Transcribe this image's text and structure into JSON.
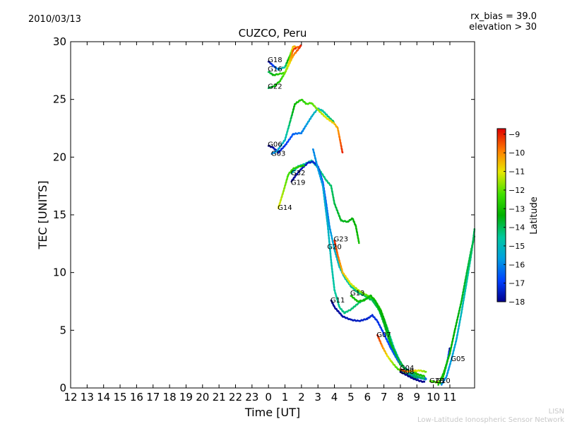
{
  "header": {
    "date": "2010/03/13",
    "rx_bias": "rx_bias = 39.0",
    "elevation": "elevation > 30"
  },
  "footer": {
    "org_short": "LISN",
    "org_long": "Low-Latitude Ionospheric Sensor Network"
  },
  "colorbar": {
    "label": "Latitude",
    "range": [
      -18,
      -8.7
    ],
    "ticks": [
      "−9",
      "−10",
      "−11",
      "−12",
      "−13",
      "−14",
      "−15",
      "−16",
      "−17",
      "−18"
    ],
    "tick_values": [
      -9,
      -10,
      -11,
      -12,
      -13,
      -14,
      -15,
      -16,
      -17,
      -18
    ]
  },
  "chart_data": {
    "type": "scatter",
    "title": "CUZCO, Peru",
    "xlabel": "Time [UT]",
    "ylabel": "TEC [UNITS]",
    "xlim": [
      12,
      36.5
    ],
    "ylim": [
      0,
      30
    ],
    "x_ticks": [
      "12",
      "13",
      "14",
      "15",
      "16",
      "17",
      "18",
      "19",
      "20",
      "21",
      "22",
      "23",
      "0",
      "1",
      "2",
      "3",
      "4",
      "5",
      "6",
      "7",
      "8",
      "9",
      "10",
      "11"
    ],
    "x_tick_values": [
      12,
      13,
      14,
      15,
      16,
      17,
      18,
      19,
      20,
      21,
      22,
      23,
      24,
      25,
      26,
      27,
      28,
      29,
      30,
      31,
      32,
      33,
      34,
      35
    ],
    "y_ticks": [
      "0",
      "5",
      "10",
      "15",
      "20",
      "25",
      "30"
    ],
    "y_tick_values": [
      0,
      5,
      10,
      15,
      20,
      25,
      30
    ],
    "series": [
      {
        "name": "G18",
        "label_at": [
          24.0,
          28.4
        ],
        "lat_start": -18,
        "lat_end": -9,
        "points": [
          [
            24.0,
            28.3
          ],
          [
            24.3,
            27.9
          ],
          [
            24.6,
            27.6
          ],
          [
            25.0,
            27.8
          ],
          [
            25.3,
            28.8
          ],
          [
            25.5,
            29.6
          ],
          [
            25.8,
            29.5
          ],
          [
            26.0,
            29.7
          ]
        ]
      },
      {
        "name": "G16",
        "label_at": [
          24.0,
          27.6
        ],
        "lat_start": -14,
        "lat_end": -9,
        "points": [
          [
            24.0,
            27.4
          ],
          [
            24.3,
            27.1
          ],
          [
            24.6,
            27.2
          ],
          [
            25.0,
            27.3
          ],
          [
            25.3,
            28.4
          ],
          [
            25.5,
            29.3
          ],
          [
            25.7,
            29.5
          ]
        ]
      },
      {
        "name": "G22",
        "label_at": [
          24.0,
          26.1
        ],
        "lat_start": -14,
        "lat_end": -9,
        "points": [
          [
            24.0,
            26.0
          ],
          [
            24.3,
            26.1
          ],
          [
            24.7,
            26.6
          ],
          [
            25.0,
            27.3
          ],
          [
            25.5,
            28.8
          ],
          [
            26.0,
            29.7
          ]
        ]
      },
      {
        "name": "G06",
        "label_at": [
          24.0,
          21.1
        ],
        "lat_start": -18,
        "lat_end": -14,
        "points": [
          [
            24.0,
            21.0
          ],
          [
            24.3,
            20.8
          ],
          [
            24.6,
            20.4
          ],
          [
            25.0,
            21.0
          ],
          [
            25.5,
            22.0
          ],
          [
            26.0,
            22.1
          ],
          [
            26.3,
            22.8
          ],
          [
            26.7,
            23.7
          ],
          [
            27.0,
            24.2
          ],
          [
            27.3,
            24.0
          ],
          [
            27.7,
            23.4
          ],
          [
            28.0,
            23.0
          ]
        ]
      },
      {
        "name": "G03",
        "label_at": [
          24.2,
          20.3
        ],
        "lat_start": -16,
        "lat_end": -9,
        "points": [
          [
            24.2,
            20.3
          ],
          [
            24.5,
            20.5
          ],
          [
            25.0,
            21.5
          ],
          [
            25.3,
            23.0
          ],
          [
            25.6,
            24.6
          ],
          [
            26.0,
            25.0
          ],
          [
            26.3,
            24.6
          ],
          [
            26.6,
            24.7
          ],
          [
            27.0,
            24.1
          ],
          [
            27.5,
            23.4
          ],
          [
            28.0,
            22.9
          ],
          [
            28.2,
            22.5
          ],
          [
            28.5,
            20.3
          ]
        ]
      },
      {
        "name": "G32",
        "label_at": [
          25.4,
          18.6
        ],
        "lat_start": -15,
        "lat_end": -13,
        "points": [
          [
            25.4,
            18.6
          ],
          [
            25.8,
            19.2
          ],
          [
            26.2,
            19.4
          ],
          [
            26.6,
            19.7
          ],
          [
            27.0,
            19.1
          ],
          [
            27.5,
            18.0
          ],
          [
            27.8,
            17.5
          ],
          [
            28.0,
            16.0
          ],
          [
            28.4,
            14.5
          ],
          [
            28.8,
            14.4
          ],
          [
            29.1,
            14.7
          ],
          [
            29.3,
            14.0
          ],
          [
            29.5,
            12.5
          ]
        ]
      },
      {
        "name": "G19",
        "label_at": [
          25.4,
          17.8
        ],
        "lat_start": -18,
        "lat_end": -12,
        "points": [
          [
            25.4,
            17.9
          ],
          [
            25.7,
            18.5
          ],
          [
            26.0,
            19.0
          ],
          [
            26.4,
            19.5
          ],
          [
            26.7,
            19.6
          ],
          [
            27.0,
            19.2
          ],
          [
            27.3,
            17.8
          ],
          [
            27.5,
            16.0
          ],
          [
            27.7,
            14.0
          ],
          [
            28.0,
            12.0
          ],
          [
            28.3,
            10.5
          ],
          [
            28.6,
            9.6
          ],
          [
            29.0,
            8.8
          ],
          [
            29.4,
            8.3
          ],
          [
            29.8,
            8.0
          ],
          [
            30.2,
            7.8
          ],
          [
            30.6,
            7.0
          ],
          [
            31.0,
            6.0
          ],
          [
            31.4,
            4.0
          ],
          [
            31.8,
            2.5
          ],
          [
            32.3,
            1.6
          ],
          [
            33.0,
            1.3
          ]
        ]
      },
      {
        "name": "G14",
        "label_at": [
          24.6,
          15.6
        ],
        "lat_start": -11,
        "lat_end": -13,
        "points": [
          [
            24.6,
            15.6
          ],
          [
            24.9,
            17.0
          ],
          [
            25.2,
            18.5
          ],
          [
            25.5,
            19.0
          ],
          [
            25.9,
            19.2
          ],
          [
            26.2,
            19.3
          ]
        ]
      },
      {
        "name": "G23",
        "label_at": [
          28.0,
          12.9
        ],
        "lat_start": -9,
        "lat_end": -17,
        "points": [
          [
            28.0,
            12.8
          ],
          [
            28.2,
            11.5
          ],
          [
            28.5,
            10.0
          ],
          [
            29.0,
            9.0
          ],
          [
            29.5,
            8.4
          ],
          [
            30.0,
            8.0
          ],
          [
            30.4,
            7.7
          ],
          [
            30.8,
            6.8
          ],
          [
            31.2,
            5.2
          ],
          [
            31.6,
            3.5
          ],
          [
            32.0,
            2.2
          ],
          [
            32.5,
            1.2
          ],
          [
            33.0,
            0.9
          ],
          [
            33.6,
            0.8
          ]
        ]
      },
      {
        "name": "G20",
        "label_at": [
          27.6,
          12.2
        ],
        "lat_start": -16,
        "lat_end": -13,
        "points": [
          [
            26.7,
            20.7
          ],
          [
            27.0,
            19.0
          ],
          [
            27.3,
            17.5
          ],
          [
            27.6,
            14.0
          ],
          [
            27.8,
            11.0
          ],
          [
            28.0,
            8.5
          ],
          [
            28.3,
            7.0
          ],
          [
            28.6,
            6.5
          ],
          [
            29.0,
            6.8
          ],
          [
            29.5,
            7.4
          ],
          [
            30.0,
            7.8
          ],
          [
            30.3,
            7.6
          ],
          [
            30.7,
            6.8
          ],
          [
            31.0,
            5.6
          ],
          [
            31.3,
            4.2
          ],
          [
            31.6,
            3.0
          ],
          [
            32.0,
            2.0
          ],
          [
            32.5,
            1.5
          ],
          [
            33.0,
            1.2
          ],
          [
            33.5,
            1.0
          ]
        ]
      },
      {
        "name": "G11",
        "label_at": [
          27.8,
          7.6
        ],
        "lat_start": -18,
        "lat_end": -16,
        "points": [
          [
            27.8,
            7.6
          ],
          [
            28.0,
            7.0
          ],
          [
            28.5,
            6.2
          ],
          [
            29.0,
            5.9
          ],
          [
            29.5,
            5.8
          ],
          [
            30.0,
            6.0
          ],
          [
            30.3,
            6.3
          ],
          [
            30.6,
            5.8
          ],
          [
            31.0,
            4.7
          ],
          [
            31.4,
            3.5
          ],
          [
            31.8,
            2.5
          ],
          [
            32.2,
            1.8
          ],
          [
            32.6,
            1.4
          ],
          [
            33.0,
            1.0
          ],
          [
            33.6,
            0.7
          ]
        ]
      },
      {
        "name": "G13",
        "label_at": [
          29.0,
          8.2
        ],
        "lat_start": -13,
        "lat_end": -14,
        "points": [
          [
            29.0,
            8.0
          ],
          [
            29.4,
            7.5
          ],
          [
            29.8,
            7.6
          ],
          [
            30.2,
            8.0
          ],
          [
            30.5,
            7.5
          ],
          [
            30.8,
            6.6
          ],
          [
            31.1,
            5.4
          ],
          [
            31.4,
            4.0
          ],
          [
            31.8,
            2.7
          ],
          [
            32.2,
            1.8
          ],
          [
            32.6,
            1.3
          ],
          [
            33.0,
            1.0
          ],
          [
            33.5,
            0.8
          ]
        ]
      },
      {
        "name": "G07",
        "label_at": [
          30.6,
          4.6
        ],
        "lat_start": -9,
        "lat_end": -14,
        "points": [
          [
            30.6,
            4.6
          ],
          [
            30.9,
            3.6
          ],
          [
            31.2,
            2.8
          ],
          [
            31.5,
            2.2
          ],
          [
            31.8,
            1.7
          ],
          [
            32.2,
            1.3
          ],
          [
            32.6,
            1.0
          ],
          [
            33.0,
            0.8
          ]
        ]
      },
      {
        "name": "G04",
        "label_at": [
          32.0,
          1.7
        ],
        "lat_start": -9,
        "lat_end": -12,
        "points": [
          [
            32.0,
            1.6
          ],
          [
            32.4,
            1.4
          ],
          [
            32.8,
            1.5
          ],
          [
            33.2,
            1.5
          ],
          [
            33.6,
            1.4
          ]
        ]
      },
      {
        "name": "G08",
        "label_at": [
          32.0,
          1.4
        ],
        "lat_start": -18,
        "lat_end": -18,
        "points": [
          [
            32.0,
            1.4
          ],
          [
            32.4,
            1.1
          ],
          [
            32.8,
            0.8
          ],
          [
            33.2,
            0.6
          ],
          [
            33.5,
            0.5
          ]
        ]
      },
      {
        "name": "G28",
        "label_at": [
          33.8,
          0.6
        ],
        "lat_start": -12,
        "lat_end": -13,
        "points": [
          [
            33.8,
            0.6
          ],
          [
            34.2,
            0.5
          ],
          [
            34.5,
            0.4
          ]
        ]
      },
      {
        "name": "G10",
        "label_at": [
          34.2,
          0.6
        ],
        "lat_start": -11,
        "lat_end": -18,
        "points": [
          [
            34.2,
            0.5
          ],
          [
            34.4,
            0.6
          ],
          [
            34.6,
            1.0
          ],
          [
            34.8,
            2.0
          ],
          [
            35.0,
            3.5
          ]
        ]
      },
      {
        "name": "G05",
        "label_at": [
          35.1,
          2.5
        ],
        "lat_start": -16,
        "lat_end": -14,
        "points": [
          [
            34.5,
            0.3
          ],
          [
            34.8,
            1.0
          ],
          [
            35.1,
            2.5
          ],
          [
            35.4,
            4.2
          ],
          [
            35.7,
            6.5
          ],
          [
            36.0,
            9.0
          ],
          [
            36.3,
            11.6
          ],
          [
            36.5,
            13.8
          ]
        ]
      },
      {
        "name": "",
        "label_at": null,
        "lat_start": -13,
        "lat_end": -14,
        "points": [
          [
            34.3,
            0.3
          ],
          [
            34.6,
            1.2
          ],
          [
            35.0,
            3.0
          ],
          [
            35.3,
            5.0
          ],
          [
            35.7,
            7.5
          ],
          [
            36.0,
            9.8
          ],
          [
            36.3,
            12.0
          ],
          [
            36.5,
            13.2
          ]
        ]
      }
    ]
  }
}
